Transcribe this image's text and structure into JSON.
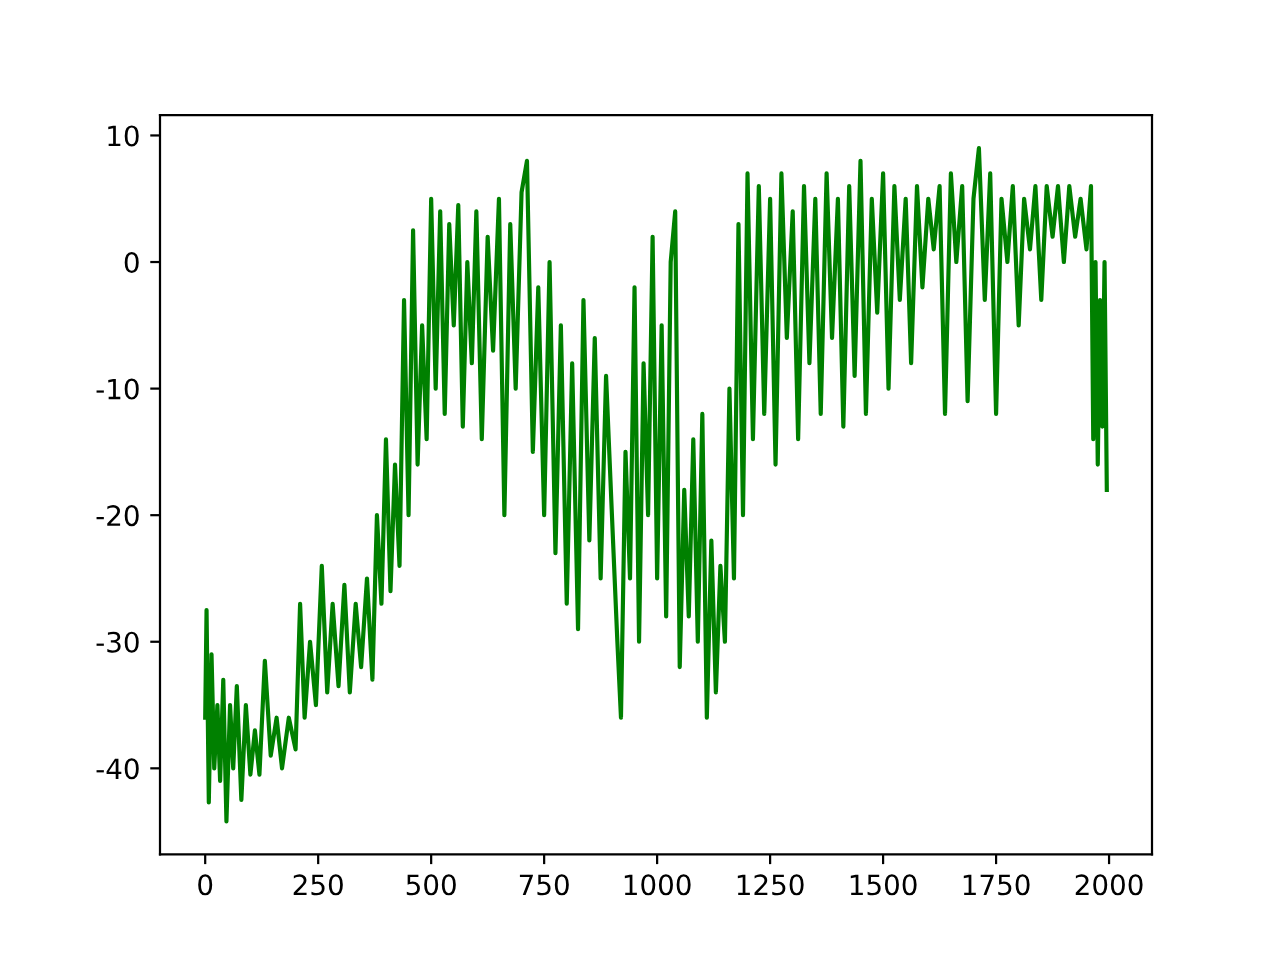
{
  "chart_data": {
    "type": "line",
    "xlim": [
      -100,
      2095
    ],
    "ylim": [
      -46.8,
      11.6
    ],
    "xticks": [
      0,
      250,
      500,
      750,
      1000,
      1250,
      1500,
      1750,
      2000
    ],
    "yticks": [
      -40,
      -30,
      -20,
      -10,
      0,
      10
    ],
    "grid": false,
    "legend": false,
    "series": [
      {
        "color": "#008000",
        "x": [
          0,
          3,
          8,
          14,
          20,
          27,
          33,
          40,
          47,
          55,
          62,
          70,
          80,
          90,
          100,
          110,
          120,
          132,
          145,
          158,
          170,
          185,
          200,
          210,
          220,
          232,
          245,
          258,
          270,
          282,
          295,
          308,
          320,
          333,
          345,
          358,
          370,
          380,
          390,
          400,
          410,
          420,
          430,
          440,
          450,
          460,
          470,
          480,
          490,
          500,
          510,
          520,
          530,
          540,
          550,
          560,
          570,
          580,
          590,
          600,
          612,
          625,
          637,
          650,
          662,
          675,
          687,
          700,
          712,
          725,
          737,
          750,
          762,
          775,
          787,
          800,
          812,
          825,
          837,
          850,
          862,
          875,
          887,
          900,
          912,
          920,
          930,
          940,
          950,
          960,
          970,
          980,
          990,
          1000,
          1010,
          1020,
          1030,
          1040,
          1050,
          1060,
          1070,
          1080,
          1090,
          1100,
          1110,
          1120,
          1130,
          1140,
          1150,
          1160,
          1170,
          1180,
          1190,
          1200,
          1212,
          1225,
          1237,
          1250,
          1262,
          1275,
          1287,
          1300,
          1312,
          1325,
          1337,
          1350,
          1362,
          1375,
          1387,
          1400,
          1412,
          1425,
          1437,
          1450,
          1462,
          1475,
          1487,
          1500,
          1512,
          1525,
          1537,
          1550,
          1562,
          1575,
          1587,
          1600,
          1612,
          1625,
          1637,
          1650,
          1662,
          1675,
          1687,
          1700,
          1712,
          1725,
          1737,
          1750,
          1762,
          1775,
          1787,
          1800,
          1812,
          1825,
          1837,
          1850,
          1862,
          1875,
          1887,
          1900,
          1912,
          1925,
          1937,
          1950,
          1960,
          1965,
          1970,
          1975,
          1980,
          1985,
          1990,
          1995
        ],
        "values": [
          -36,
          -27.5,
          -42.7,
          -31,
          -40,
          -35,
          -41,
          -33,
          -44.2,
          -35,
          -40,
          -33.5,
          -42.5,
          -35,
          -40.5,
          -37,
          -40.5,
          -31.5,
          -39,
          -36,
          -40,
          -36,
          -38.5,
          -27,
          -36,
          -30,
          -35,
          -24,
          -34,
          -27,
          -33.5,
          -25.5,
          -34,
          -27,
          -32,
          -25,
          -33,
          -20,
          -27,
          -14,
          -26,
          -16,
          -24,
          -3,
          -20,
          2.5,
          -16,
          -5,
          -14,
          5,
          -10,
          4,
          -12,
          3,
          -5,
          4.5,
          -13,
          0,
          -8,
          4,
          -14,
          2,
          -7,
          5,
          -20,
          3,
          -10,
          5.5,
          8,
          -15,
          -2,
          -20,
          0,
          -23,
          -5,
          -27,
          -8,
          -29,
          -3,
          -22,
          -6,
          -25,
          -9,
          -20,
          -30,
          -36,
          -15,
          -25,
          -2,
          -30,
          -8,
          -20,
          2,
          -25,
          -5,
          -28,
          0,
          4,
          -32,
          -18,
          -28,
          -14,
          -30,
          -12,
          -36,
          -22,
          -34,
          -24,
          -30,
          -10,
          -25,
          3,
          -20,
          7,
          -14,
          6,
          -12,
          5,
          -16,
          7,
          -6,
          4,
          -14,
          6,
          -8,
          5,
          -12,
          7,
          -6,
          5,
          -13,
          6,
          -9,
          8,
          -12,
          5,
          -4,
          7,
          -10,
          6,
          -3,
          5,
          -8,
          6,
          -2,
          5,
          1,
          6,
          -12,
          7,
          0,
          6,
          -11,
          5,
          9,
          -3,
          7,
          -12,
          5,
          0,
          6,
          -5,
          5,
          1,
          6,
          -3,
          6,
          2,
          6,
          0,
          6,
          2,
          5,
          1,
          6,
          -14,
          0,
          -16,
          -3,
          -13,
          0,
          -18
        ]
      }
    ]
  }
}
